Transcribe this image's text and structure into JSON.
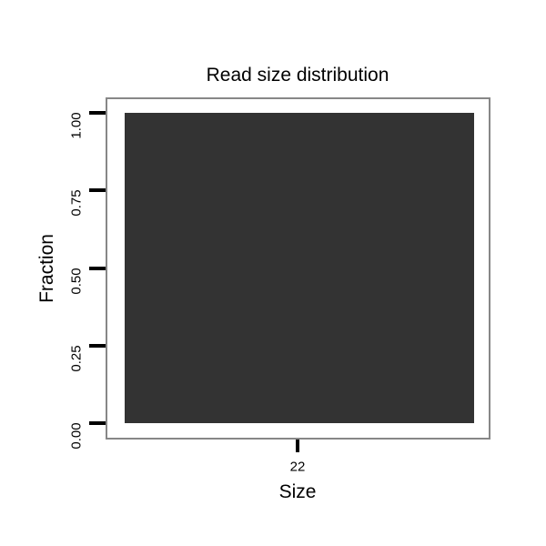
{
  "chart_data": {
    "type": "bar",
    "title": "Read size distribution",
    "xlabel": "Size",
    "ylabel": "Fraction",
    "categories": [
      "22"
    ],
    "values": [
      1.0
    ],
    "ylim": [
      0,
      1
    ],
    "yticks": [
      0,
      0.25,
      0.5,
      0.75,
      1
    ],
    "y_tick_labels": [
      "0.00",
      "0.25",
      "0.50",
      "0.75",
      "1.00"
    ],
    "x_tick_labels": [
      "22"
    ],
    "grid": false,
    "legend": "none",
    "bar_color": "#333333",
    "frame_color": "#878787",
    "tick_color": "#000000",
    "text_color": "#000000",
    "background_color": "#ffffff"
  }
}
